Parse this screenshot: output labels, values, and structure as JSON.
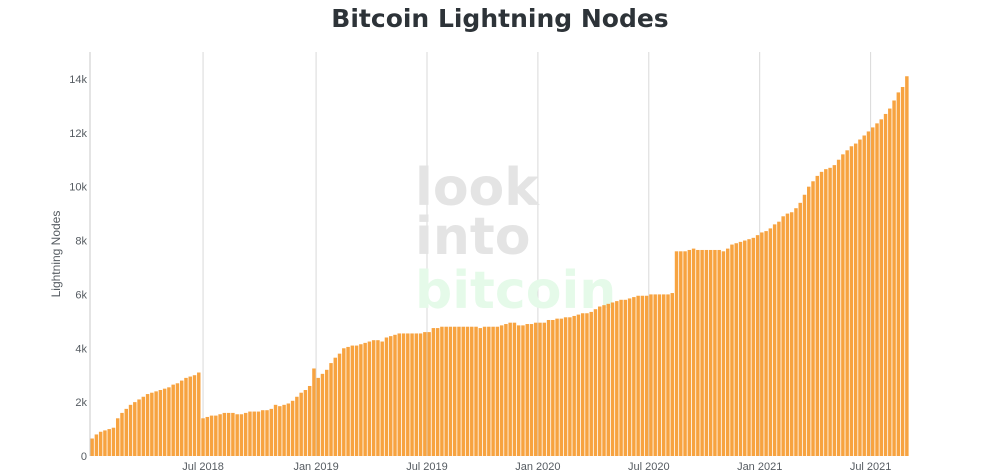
{
  "chart_data": {
    "type": "bar",
    "title": "Bitcoin Lightning Nodes",
    "xlabel": "",
    "ylabel": "Lightning Nodes",
    "ylim": [
      0,
      15000
    ],
    "y_ticks": [
      {
        "value": 0,
        "label": "0"
      },
      {
        "value": 2000,
        "label": "2k"
      },
      {
        "value": 4000,
        "label": "4k"
      },
      {
        "value": 6000,
        "label": "6k"
      },
      {
        "value": 8000,
        "label": "8k"
      },
      {
        "value": 10000,
        "label": "10k"
      },
      {
        "value": 12000,
        "label": "12k"
      },
      {
        "value": 14000,
        "label": "14k"
      }
    ],
    "x_ticks": [
      {
        "index": 26.5,
        "label": "Jul 2018"
      },
      {
        "index": 53,
        "label": "Jan 2019"
      },
      {
        "index": 79,
        "label": "Jul 2019"
      },
      {
        "index": 105,
        "label": "Jan 2020"
      },
      {
        "index": 131,
        "label": "Jul 2020"
      },
      {
        "index": 157,
        "label": "Jan 2021"
      },
      {
        "index": 183,
        "label": "Jul 2021"
      }
    ],
    "grid": "vertical lines at x ticks",
    "bar_color": "#f7a340",
    "values": [
      650,
      800,
      900,
      950,
      1000,
      1050,
      1400,
      1600,
      1750,
      1900,
      2000,
      2100,
      2200,
      2300,
      2350,
      2400,
      2450,
      2500,
      2550,
      2650,
      2700,
      2800,
      2900,
      2950,
      3000,
      3100,
      1400,
      1450,
      1500,
      1500,
      1550,
      1600,
      1600,
      1600,
      1550,
      1550,
      1600,
      1650,
      1650,
      1650,
      1700,
      1700,
      1750,
      1900,
      1850,
      1900,
      1950,
      2050,
      2200,
      2350,
      2450,
      2600,
      3250,
      2900,
      3050,
      3200,
      3450,
      3650,
      3800,
      4000,
      4050,
      4100,
      4100,
      4150,
      4200,
      4250,
      4300,
      4300,
      4250,
      4400,
      4450,
      4500,
      4550,
      4550,
      4550,
      4550,
      4550,
      4550,
      4600,
      4600,
      4750,
      4750,
      4800,
      4800,
      4800,
      4800,
      4800,
      4800,
      4800,
      4800,
      4800,
      4750,
      4800,
      4800,
      4800,
      4800,
      4850,
      4900,
      4950,
      4950,
      4850,
      4850,
      4900,
      4900,
      4950,
      4950,
      4950,
      5050,
      5050,
      5100,
      5100,
      5150,
      5150,
      5200,
      5250,
      5300,
      5300,
      5350,
      5450,
      5550,
      5600,
      5650,
      5700,
      5750,
      5800,
      5800,
      5850,
      5900,
      5950,
      5950,
      5950,
      6000,
      6000,
      6000,
      6000,
      6000,
      6050,
      7600,
      7600,
      7600,
      7650,
      7700,
      7650,
      7650,
      7650,
      7650,
      7650,
      7650,
      7600,
      7700,
      7850,
      7900,
      7950,
      8000,
      8050,
      8100,
      8200,
      8300,
      8350,
      8450,
      8600,
      8700,
      8900,
      9000,
      9050,
      9200,
      9400,
      9700,
      10000,
      10200,
      10400,
      10550,
      10650,
      10700,
      10800,
      11000,
      11200,
      11350,
      11500,
      11600,
      11750,
      11900,
      12050,
      12200,
      12350,
      12500,
      12700,
      12900,
      13200,
      13500,
      13700,
      14100
    ]
  },
  "watermark": {
    "line1": "look",
    "line2": "into",
    "line3": "bitcoin"
  },
  "colors": {
    "bar": "#f7a340",
    "grid": "#d9d9d9",
    "axis": "#555b61",
    "wm_gray": "#e4e4e4",
    "wm_green": "#e5fae9"
  }
}
